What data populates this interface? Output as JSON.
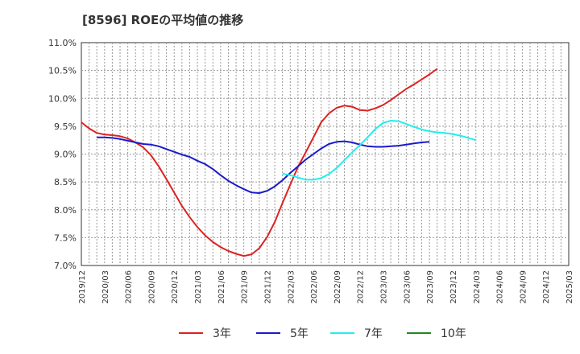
{
  "chart_data": {
    "type": "line",
    "title": "[8596]  ROEの平均値の推移",
    "xlabel": "",
    "ylabel": "",
    "ylim": [
      7.0,
      11.0
    ],
    "yticks": [
      7.0,
      7.5,
      8.0,
      8.5,
      9.0,
      9.5,
      10.0,
      10.5,
      11.0
    ],
    "ytick_labels": [
      "7.0%",
      "7.5%",
      "8.0%",
      "8.5%",
      "9.0%",
      "9.5%",
      "10.0%",
      "10.5%",
      "11.0%"
    ],
    "xtick_labels": [
      "2019/12",
      "2020/03",
      "2020/06",
      "2020/09",
      "2020/12",
      "2021/03",
      "2021/06",
      "2021/09",
      "2021/12",
      "2022/03",
      "2022/06",
      "2022/09",
      "2022/12",
      "2023/03",
      "2023/06",
      "2023/09",
      "2023/12",
      "2024/03",
      "2024/06",
      "2024/09",
      "2024/12",
      "2025/03"
    ],
    "grid": true,
    "legend_position": "bottom",
    "series": [
      {
        "name": "3年",
        "color": "#dd2222",
        "points": [
          [
            0,
            9.57
          ],
          [
            1,
            9.46
          ],
          [
            2,
            9.38
          ],
          [
            3,
            9.35
          ],
          [
            4,
            9.34
          ],
          [
            5,
            9.32
          ],
          [
            6,
            9.28
          ],
          [
            7,
            9.21
          ],
          [
            8,
            9.12
          ],
          [
            9,
            8.98
          ],
          [
            10,
            8.78
          ],
          [
            11,
            8.55
          ],
          [
            12,
            8.31
          ],
          [
            13,
            8.07
          ],
          [
            14,
            7.87
          ],
          [
            15,
            7.69
          ],
          [
            16,
            7.54
          ],
          [
            17,
            7.42
          ],
          [
            18,
            7.33
          ],
          [
            19,
            7.26
          ],
          [
            20,
            7.21
          ],
          [
            21,
            7.17
          ],
          [
            22,
            7.2
          ],
          [
            23,
            7.31
          ],
          [
            24,
            7.51
          ],
          [
            25,
            7.78
          ],
          [
            26,
            8.12
          ],
          [
            27,
            8.45
          ],
          [
            28,
            8.77
          ],
          [
            29,
            9.03
          ],
          [
            30,
            9.3
          ],
          [
            31,
            9.57
          ],
          [
            32,
            9.73
          ],
          [
            33,
            9.83
          ],
          [
            34,
            9.87
          ],
          [
            35,
            9.85
          ],
          [
            36,
            9.79
          ],
          [
            37,
            9.78
          ],
          [
            38,
            9.82
          ],
          [
            39,
            9.88
          ],
          [
            40,
            9.97
          ],
          [
            41,
            10.07
          ],
          [
            42,
            10.17
          ],
          [
            43,
            10.25
          ],
          [
            44,
            10.34
          ],
          [
            45,
            10.43
          ],
          [
            46,
            10.53
          ]
        ]
      },
      {
        "name": "5年",
        "color": "#1a1acc",
        "points": [
          [
            2,
            9.3
          ],
          [
            3,
            9.3
          ],
          [
            4,
            9.29
          ],
          [
            5,
            9.27
          ],
          [
            6,
            9.24
          ],
          [
            7,
            9.21
          ],
          [
            8,
            9.18
          ],
          [
            9,
            9.17
          ],
          [
            10,
            9.14
          ],
          [
            11,
            9.09
          ],
          [
            12,
            9.04
          ],
          [
            13,
            8.99
          ],
          [
            14,
            8.95
          ],
          [
            15,
            8.88
          ],
          [
            16,
            8.82
          ],
          [
            17,
            8.73
          ],
          [
            18,
            8.62
          ],
          [
            19,
            8.52
          ],
          [
            20,
            8.44
          ],
          [
            21,
            8.37
          ],
          [
            22,
            8.31
          ],
          [
            23,
            8.3
          ],
          [
            24,
            8.34
          ],
          [
            25,
            8.42
          ],
          [
            26,
            8.53
          ],
          [
            27,
            8.66
          ],
          [
            28,
            8.78
          ],
          [
            29,
            8.9
          ],
          [
            30,
            9.0
          ],
          [
            31,
            9.1
          ],
          [
            32,
            9.18
          ],
          [
            33,
            9.22
          ],
          [
            34,
            9.23
          ],
          [
            35,
            9.21
          ],
          [
            36,
            9.17
          ],
          [
            37,
            9.14
          ],
          [
            38,
            9.13
          ],
          [
            39,
            9.13
          ],
          [
            40,
            9.14
          ],
          [
            41,
            9.15
          ],
          [
            42,
            9.17
          ],
          [
            43,
            9.19
          ],
          [
            44,
            9.21
          ],
          [
            45,
            9.22
          ]
        ]
      },
      {
        "name": "7年",
        "color": "#22eeee",
        "points": [
          [
            26,
            8.65
          ],
          [
            27,
            8.62
          ],
          [
            28,
            8.58
          ],
          [
            29,
            8.54
          ],
          [
            30,
            8.54
          ],
          [
            31,
            8.57
          ],
          [
            32,
            8.64
          ],
          [
            33,
            8.75
          ],
          [
            34,
            8.89
          ],
          [
            35,
            9.03
          ],
          [
            36,
            9.16
          ],
          [
            37,
            9.3
          ],
          [
            38,
            9.45
          ],
          [
            39,
            9.56
          ],
          [
            40,
            9.6
          ],
          [
            41,
            9.59
          ],
          [
            42,
            9.54
          ],
          [
            43,
            9.49
          ],
          [
            44,
            9.44
          ],
          [
            45,
            9.41
          ],
          [
            46,
            9.39
          ],
          [
            47,
            9.38
          ],
          [
            48,
            9.36
          ],
          [
            49,
            9.33
          ],
          [
            50,
            9.29
          ],
          [
            51,
            9.25
          ]
        ]
      },
      {
        "name": "10年",
        "color": "#228822",
        "points": []
      }
    ]
  }
}
